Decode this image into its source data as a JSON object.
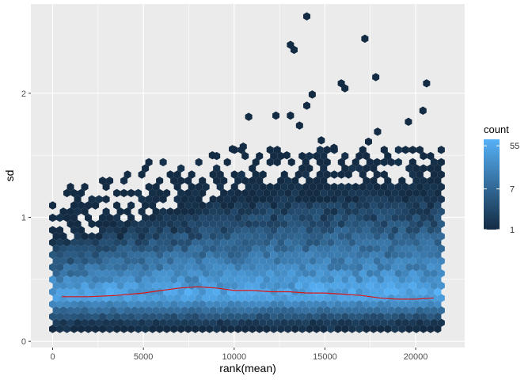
{
  "chart_data": {
    "type": "hexbin",
    "x_label": "rank(mean)",
    "y_label": "sd",
    "xlim": [
      -1200,
      22700
    ],
    "ylim": [
      -0.05,
      2.72
    ],
    "x_ticks": [
      0,
      5000,
      10000,
      15000,
      20000
    ],
    "x_tick_labels": [
      "0",
      "5000",
      "10000",
      "15000",
      "20000"
    ],
    "y_ticks": [
      0,
      1,
      2
    ],
    "y_tick_labels": [
      "0",
      "1",
      "2"
    ],
    "grid": true,
    "legend": {
      "title": "count",
      "position": "right",
      "scale": "log",
      "tick_values": [
        1,
        7,
        55
      ],
      "tick_labels": [
        "1",
        "7",
        "55"
      ],
      "color_low": "#132B43",
      "color_high": "#56B1F7"
    },
    "density_ridge": {
      "center_sd": 0.38,
      "dense_band_low": 0.12,
      "x_min": 0,
      "x_max": 21600
    },
    "trend_line": {
      "color": "#d7191c",
      "x": [
        500,
        2000,
        3500,
        5000,
        6000,
        7000,
        8000,
        9000,
        10000,
        11000,
        12000,
        13000,
        14000,
        15000,
        16000,
        17000,
        18000,
        19000,
        20000,
        21000
      ],
      "y": [
        0.36,
        0.36,
        0.37,
        0.39,
        0.41,
        0.43,
        0.44,
        0.43,
        0.41,
        0.41,
        0.4,
        0.4,
        0.39,
        0.39,
        0.38,
        0.37,
        0.35,
        0.34,
        0.34,
        0.35
      ]
    },
    "outliers": [
      {
        "x": 14000,
        "y": 2.62
      },
      {
        "x": 17200,
        "y": 2.44
      },
      {
        "x": 13100,
        "y": 2.39
      },
      {
        "x": 13300,
        "y": 2.35
      },
      {
        "x": 15900,
        "y": 2.08
      },
      {
        "x": 16100,
        "y": 2.04
      },
      {
        "x": 17800,
        "y": 2.13
      },
      {
        "x": 20600,
        "y": 2.08
      },
      {
        "x": 14300,
        "y": 1.99
      },
      {
        "x": 14000,
        "y": 1.9
      },
      {
        "x": 20400,
        "y": 1.86
      },
      {
        "x": 12300,
        "y": 1.82
      },
      {
        "x": 13100,
        "y": 1.82
      },
      {
        "x": 10800,
        "y": 1.81
      },
      {
        "x": 13600,
        "y": 1.74
      },
      {
        "x": 19600,
        "y": 1.77
      },
      {
        "x": 17900,
        "y": 1.69
      },
      {
        "x": 14800,
        "y": 1.62
      },
      {
        "x": 15500,
        "y": 1.56
      },
      {
        "x": 10500,
        "y": 1.57
      },
      {
        "x": 17400,
        "y": 1.61
      },
      {
        "x": 9900,
        "y": 1.55
      },
      {
        "x": 12900,
        "y": 1.5
      },
      {
        "x": 8800,
        "y": 1.5
      }
    ]
  }
}
